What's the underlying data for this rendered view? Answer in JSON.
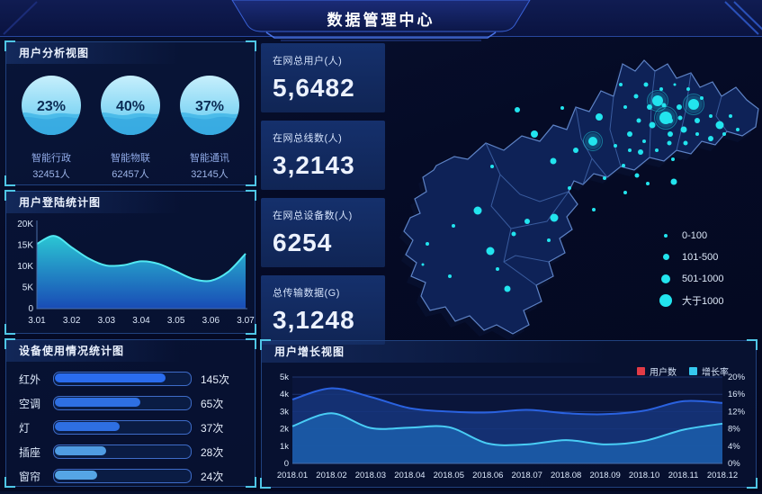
{
  "header": {
    "title": "数据管理中心"
  },
  "panels": {
    "user_analysis": {
      "title": "用户分析视图"
    },
    "login_stats": {
      "title": "用户登陆统计图"
    },
    "device_usage": {
      "title": "设备使用情况统计图"
    },
    "user_growth": {
      "title": "用户增长视图"
    }
  },
  "stats": [
    {
      "label": "在网总用户(人)",
      "value": "5,6482"
    },
    {
      "label": "在网总线数(人)",
      "value": "3,2143"
    },
    {
      "label": "在网总设备数(人)",
      "value": "6254"
    },
    {
      "label": "总传输数据(G)",
      "value": "3,1248"
    }
  ],
  "chart_data": {
    "gauges": {
      "type": "pie",
      "title": "用户分析视图",
      "items": [
        {
          "name": "智能行政",
          "percent": 23,
          "count": "32451人"
        },
        {
          "name": "智能物联",
          "percent": 40,
          "count": "62457人"
        },
        {
          "name": "智能通讯",
          "percent": 37,
          "count": "32145人"
        }
      ]
    },
    "login": {
      "type": "area",
      "title": "用户登陆统计图",
      "x": [
        3.01,
        3.015,
        3.02,
        3.025,
        3.03,
        3.035,
        3.04,
        3.045,
        3.05,
        3.055,
        3.06,
        3.065,
        3.07
      ],
      "y": [
        15300,
        17200,
        14500,
        11800,
        10200,
        10300,
        11200,
        10600,
        8800,
        7000,
        6600,
        8700,
        13000
      ],
      "xticks": [
        "3.01",
        "3.02",
        "3.03",
        "3.04",
        "3.05",
        "3.06",
        "3.07"
      ],
      "yticks": [
        "0",
        "5K",
        "10K",
        "15K",
        "20K"
      ],
      "ylim": [
        0,
        20000
      ],
      "line_color": "#52e8f2",
      "fill_top": "#2dd0dc",
      "fill_bottom": "#1b52c4",
      "grid": false
    },
    "devices": {
      "type": "bar",
      "title": "设备使用情况统计图",
      "unit": "次",
      "categories": [
        "红外",
        "空调",
        "灯",
        "插座",
        "窗帘"
      ],
      "values": [
        145,
        65,
        37,
        28,
        24
      ],
      "display_pct": [
        82,
        63,
        48,
        38,
        31
      ],
      "bar_colors": [
        "#2a6cee",
        "#2e6fe2",
        "#2e6fe2",
        "#4f9ce2",
        "#55a5e5"
      ]
    },
    "growth": {
      "type": "area",
      "title": "用户增长视图",
      "categories": [
        "2018.01",
        "2018.02",
        "2018.03",
        "2018.04",
        "2018.05",
        "2018.06",
        "2018.07",
        "2018.08",
        "2018.09",
        "2018.10",
        "2018.11",
        "2018.12"
      ],
      "series": [
        {
          "name": "用户数",
          "axis": "left",
          "line_color": "#2a62e0",
          "fill_color": "rgba(22,53,124,0.85)",
          "values": [
            3700,
            4350,
            3850,
            3200,
            3000,
            2950,
            3100,
            2900,
            2850,
            3050,
            3600,
            3500
          ]
        },
        {
          "name": "增长率",
          "axis": "right",
          "line_color": "#49cdf5",
          "fill_color": "rgba(28,100,180,0.75)",
          "values": [
            8.6,
            11.6,
            8.2,
            8.3,
            8.4,
            4.6,
            4.4,
            5.4,
            4.4,
            5.2,
            7.8,
            9.2
          ]
        }
      ],
      "legend": [
        {
          "label": "用户数",
          "color": "#e23b46"
        },
        {
          "label": "增长率",
          "color": "#35c8ee"
        }
      ],
      "ylim_left": [
        0,
        5000
      ],
      "yticks_left": [
        "0",
        "1k",
        "2k",
        "3k",
        "4k",
        "5k"
      ],
      "ylim_right": [
        0,
        20
      ],
      "yticks_right": [
        "0%",
        "4%",
        "8%",
        "12%",
        "16%",
        "20%"
      ],
      "legend_position": "top-right",
      "grid": true
    },
    "map_scatter": {
      "type": "scatter",
      "legend": [
        {
          "label": "0-100",
          "r": 2
        },
        {
          "label": "101-500",
          "r": 3.5
        },
        {
          "label": "501-1000",
          "r": 5
        },
        {
          "label": "大于1000",
          "r": 7
        }
      ],
      "dot_color": "#22e4ee",
      "dots": [
        [
          147,
          78,
          3
        ],
        [
          197,
          76,
          2
        ],
        [
          262,
          50,
          2
        ],
        [
          238,
          86,
          4
        ],
        [
          272,
          105,
          3
        ],
        [
          256,
          118,
          2
        ],
        [
          284,
          125,
          3
        ],
        [
          317,
          105,
          3
        ],
        [
          332,
          100,
          3.5
        ],
        [
          347,
          90,
          3
        ],
        [
          362,
          85,
          2
        ],
        [
          372,
          95,
          4.5
        ],
        [
          303,
          68,
          6
        ],
        [
          312,
          87,
          7
        ],
        [
          343,
          72,
          6
        ],
        [
          290,
          50,
          2.5
        ],
        [
          307,
          55,
          2
        ],
        [
          322,
          50,
          1.5
        ],
        [
          337,
          55,
          2
        ],
        [
          352,
          65,
          2
        ],
        [
          384,
          85,
          2
        ],
        [
          392,
          100,
          2
        ],
        [
          327,
          75,
          3
        ],
        [
          317,
          90,
          3
        ],
        [
          297,
          95,
          3.5
        ],
        [
          282,
          90,
          2.5
        ],
        [
          267,
          75,
          2
        ],
        [
          279,
          63,
          2.5
        ],
        [
          294,
          75,
          3
        ],
        [
          310,
          73,
          2.5
        ],
        [
          328,
          87,
          2.5
        ],
        [
          316,
          115,
          2.5
        ],
        [
          302,
          123,
          2
        ],
        [
          288,
          113,
          2
        ],
        [
          272,
          123,
          2
        ],
        [
          320,
          133,
          2
        ],
        [
          334,
          115,
          2.5
        ],
        [
          347,
          105,
          2
        ],
        [
          362,
          110,
          3
        ],
        [
          377,
          105,
          2
        ],
        [
          166,
          105,
          4
        ],
        [
          119,
          141,
          2
        ],
        [
          187,
          135,
          3.5
        ],
        [
          212,
          123,
          3
        ],
        [
          244,
          154,
          2
        ],
        [
          265,
          140,
          2
        ],
        [
          280,
          151,
          2.5
        ],
        [
          321,
          158,
          3.5
        ],
        [
          292,
          160,
          2
        ],
        [
          267,
          170,
          2
        ],
        [
          231,
          113,
          5
        ],
        [
          188,
          198,
          4.5
        ],
        [
          158,
          202,
          3
        ],
        [
          103,
          190,
          4.5
        ],
        [
          76,
          207,
          2
        ],
        [
          143,
          216,
          2.5
        ],
        [
          232,
          189,
          2
        ],
        [
          182,
          223,
          2
        ],
        [
          117,
          235,
          4.5
        ],
        [
          125,
          255,
          2
        ],
        [
          136,
          277,
          3.5
        ],
        [
          72,
          263,
          2
        ],
        [
          42,
          250,
          1.5
        ],
        [
          47,
          227,
          2
        ],
        [
          205,
          165,
          2
        ]
      ]
    }
  },
  "colors": {
    "background": "#050b26",
    "panel_border": "#20417e",
    "corner_bracket": "#4fc6e6",
    "accent_cyan": "#22e4ee",
    "map_fill": "#0e2257",
    "map_stroke": "#5e83c6"
  }
}
